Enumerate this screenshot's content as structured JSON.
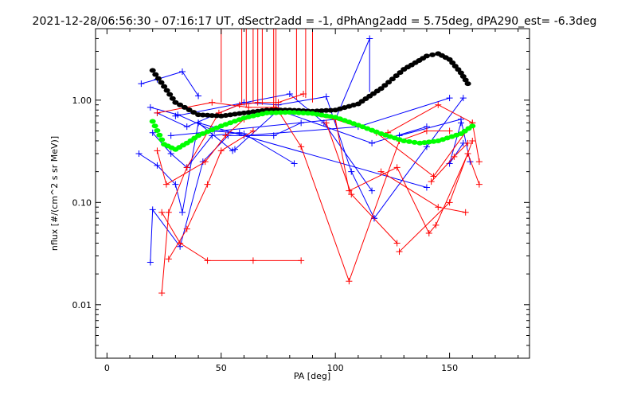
{
  "chart_data": {
    "type": "line",
    "title": "2021-12-28/06:56:30 - 07:16:17 UT, dSectr2add = -1, dPhAng2add = 5.75deg, dPA290_est=  -6.3deg",
    "xlabel": "PA [deg]",
    "ylabel": "nflux [#/(cm^2 s sr MeV)]",
    "xlim": [
      -5,
      185
    ],
    "ylim": [
      0.003,
      5
    ],
    "yscale": "log",
    "xticks": [
      0,
      50,
      100,
      150
    ],
    "xtick_labels": [
      "0",
      "50",
      "100",
      "150"
    ],
    "yticks": [
      0.01,
      0.1,
      1.0
    ],
    "ytick_labels": [
      "0.01",
      "0.10",
      "1.00"
    ],
    "colors": {
      "axis": "#000000",
      "blue": "#0000ff",
      "red": "#ff0000",
      "black": "#000000",
      "green": "#00ff00"
    },
    "series": [
      {
        "color": "blue",
        "style": "line-plus",
        "points": [
          [
            15,
            1.45
          ],
          [
            22,
            1.6
          ],
          [
            33,
            1.9
          ],
          [
            40,
            1.1
          ]
        ]
      },
      {
        "color": "blue",
        "style": "line-plus",
        "points": [
          [
            19,
            0.85
          ],
          [
            31,
            0.72
          ],
          [
            47,
            0.5
          ],
          [
            60,
            0.47
          ],
          [
            82,
            0.24
          ]
        ]
      },
      {
        "color": "blue",
        "style": "line-plus",
        "points": [
          [
            20,
            0.48
          ],
          [
            28,
            0.3
          ],
          [
            35,
            0.22
          ],
          [
            46,
            0.45
          ],
          [
            58,
            0.48
          ]
        ]
      },
      {
        "color": "blue",
        "style": "line-plus",
        "points": [
          [
            14,
            0.3
          ],
          [
            22,
            0.23
          ],
          [
            30,
            0.15
          ],
          [
            33,
            0.08
          ],
          [
            40,
            0.6
          ],
          [
            55,
            0.32
          ]
        ]
      },
      {
        "color": "blue",
        "style": "line-plus",
        "points": [
          [
            19,
            0.026
          ],
          [
            20,
            0.085
          ],
          [
            32,
            0.037
          ],
          [
            42,
            0.25
          ],
          [
            53,
            0.45
          ],
          [
            73,
            0.45
          ],
          [
            85,
            0.6
          ]
        ]
      },
      {
        "color": "blue",
        "style": "line-plus",
        "points": [
          [
            22,
            0.75
          ],
          [
            35,
            0.55
          ],
          [
            60,
            0.95
          ],
          [
            75,
            0.9
          ],
          [
            96,
            1.08
          ],
          [
            107,
            0.2
          ],
          [
            117,
            0.07
          ]
        ]
      },
      {
        "color": "blue",
        "style": "line-plus",
        "points": [
          [
            60,
            0.45
          ],
          [
            110,
            0.55
          ],
          [
            150,
            1.05
          ]
        ]
      },
      {
        "color": "blue",
        "style": "line-plus",
        "points": [
          [
            28,
            0.45
          ],
          [
            100,
            0.65
          ],
          [
            115,
            4.0
          ]
        ]
      },
      {
        "color": "blue",
        "style": "line-plus",
        "points": [
          [
            30,
            0.7
          ],
          [
            80,
            1.15
          ],
          [
            95,
            0.6
          ],
          [
            116,
            0.13
          ]
        ]
      },
      {
        "color": "blue",
        "style": "line-plus",
        "points": [
          [
            40,
            0.6
          ],
          [
            140,
            0.14
          ]
        ]
      },
      {
        "color": "blue",
        "style": "line-plus",
        "points": [
          [
            56,
            0.33
          ],
          [
            75,
            0.8
          ],
          [
            116,
            0.38
          ],
          [
            140,
            0.55
          ]
        ]
      },
      {
        "color": "blue",
        "style": "line-plus",
        "points": [
          [
            117,
            0.07
          ],
          [
            140,
            0.35
          ],
          [
            156,
            1.05
          ]
        ]
      },
      {
        "color": "blue",
        "style": "line-plus",
        "points": [
          [
            128,
            0.45
          ],
          [
            155,
            0.65
          ],
          [
            159,
            0.25
          ]
        ]
      },
      {
        "color": "blue",
        "style": "line-plus",
        "points": [
          [
            156,
            0.38
          ],
          [
            150,
            0.24
          ],
          [
            155,
            0.6
          ]
        ]
      },
      {
        "color": "blue",
        "style": "vline",
        "points": [
          [
            115,
            1.2
          ],
          [
            115,
            4.0
          ]
        ]
      },
      {
        "color": "red",
        "style": "line-plus",
        "points": [
          [
            24,
            0.013
          ],
          [
            27,
            0.08
          ],
          [
            35,
            0.22
          ],
          [
            49,
            0.75
          ],
          [
            58,
            0.9
          ],
          [
            66,
            0.95
          ],
          [
            75,
            0.95
          ],
          [
            86,
            1.15
          ]
        ]
      },
      {
        "color": "red",
        "style": "line-plus",
        "points": [
          [
            27,
            0.028
          ],
          [
            35,
            0.055
          ],
          [
            44,
            0.15
          ],
          [
            50,
            0.32
          ],
          [
            64,
            0.5
          ]
        ]
      },
      {
        "color": "red",
        "style": "line-plus",
        "points": [
          [
            24,
            0.08
          ],
          [
            32,
            0.04
          ],
          [
            44,
            0.027
          ],
          [
            64,
            0.027
          ],
          [
            85,
            0.027
          ]
        ]
      },
      {
        "color": "red",
        "style": "line-plus",
        "points": [
          [
            22,
            0.32
          ],
          [
            26,
            0.15
          ],
          [
            43,
            0.25
          ],
          [
            52,
            0.45
          ],
          [
            60,
            0.65
          ],
          [
            74,
            0.85
          ],
          [
            85,
            0.35
          ],
          [
            106,
            0.017
          ],
          [
            128,
            0.4
          ],
          [
            140,
            0.5
          ],
          [
            150,
            0.5
          ]
        ]
      },
      {
        "color": "red",
        "style": "line-plus",
        "points": [
          [
            22,
            0.75
          ],
          [
            46,
            0.95
          ],
          [
            62,
            0.85
          ],
          [
            73,
            0.85
          ],
          [
            100,
            0.65
          ],
          [
            106,
            0.13
          ],
          [
            127,
            0.22
          ],
          [
            141,
            0.05
          ],
          [
            144,
            0.06
          ],
          [
            158,
            0.3
          ],
          [
            163,
            0.15
          ]
        ]
      },
      {
        "color": "red",
        "style": "line-plus",
        "points": [
          [
            96,
            0.6
          ],
          [
            107,
            0.12
          ],
          [
            127,
            0.04
          ]
        ]
      },
      {
        "color": "red",
        "style": "line-plus",
        "points": [
          [
            100,
            0.65
          ],
          [
            118,
            0.48
          ],
          [
            143,
            0.18
          ],
          [
            160,
            0.6
          ]
        ]
      },
      {
        "color": "red",
        "style": "line-plus",
        "points": [
          [
            120,
            0.2
          ],
          [
            145,
            0.09
          ],
          [
            157,
            0.08
          ]
        ]
      },
      {
        "color": "red",
        "style": "line-plus",
        "points": [
          [
            123,
            0.48
          ],
          [
            145,
            0.9
          ],
          [
            160,
            0.6
          ],
          [
            163,
            0.25
          ]
        ]
      },
      {
        "color": "red",
        "style": "line-plus",
        "points": [
          [
            128,
            0.033
          ],
          [
            150,
            0.1
          ],
          [
            160,
            0.4
          ]
        ]
      },
      {
        "color": "red",
        "style": "line-plus",
        "points": [
          [
            142,
            0.16
          ],
          [
            152,
            0.28
          ],
          [
            158,
            0.38
          ]
        ]
      },
      {
        "color": "red",
        "style": "vline",
        "points": [
          [
            50,
            0.95
          ],
          [
            50,
            5.0
          ]
        ]
      },
      {
        "color": "red",
        "style": "vline",
        "points": [
          [
            59,
            0.9
          ],
          [
            59,
            5.0
          ]
        ]
      },
      {
        "color": "red",
        "style": "vline",
        "points": [
          [
            61,
            0.85
          ],
          [
            61,
            5.0
          ]
        ]
      },
      {
        "color": "red",
        "style": "vline",
        "points": [
          [
            64,
            0.95
          ],
          [
            64,
            5.0
          ]
        ]
      },
      {
        "color": "red",
        "style": "vline",
        "points": [
          [
            66,
            0.95
          ],
          [
            66,
            5.0
          ]
        ]
      },
      {
        "color": "red",
        "style": "vline",
        "points": [
          [
            68,
            0.9
          ],
          [
            68,
            5.0
          ]
        ]
      },
      {
        "color": "red",
        "style": "vline",
        "points": [
          [
            73,
            0.85
          ],
          [
            73,
            5.0
          ]
        ]
      },
      {
        "color": "red",
        "style": "vline",
        "points": [
          [
            74,
            0.8
          ],
          [
            74,
            5.0
          ]
        ]
      },
      {
        "color": "red",
        "style": "vline",
        "points": [
          [
            83,
            1.0
          ],
          [
            83,
            5.0
          ]
        ]
      },
      {
        "color": "red",
        "style": "vline",
        "points": [
          [
            87,
            1.05
          ],
          [
            87,
            5.0
          ]
        ]
      },
      {
        "color": "red",
        "style": "vline",
        "points": [
          [
            90,
            0.95
          ],
          [
            90,
            5.0
          ]
        ]
      },
      {
        "color": "black",
        "style": "dots",
        "points": [
          [
            20,
            1.95
          ],
          [
            30,
            0.95
          ],
          [
            40,
            0.72
          ],
          [
            50,
            0.7
          ],
          [
            60,
            0.75
          ],
          [
            70,
            0.8
          ],
          [
            80,
            0.8
          ],
          [
            90,
            0.78
          ],
          [
            100,
            0.8
          ],
          [
            110,
            0.92
          ],
          [
            120,
            1.3
          ],
          [
            130,
            2.0
          ],
          [
            140,
            2.7
          ],
          [
            145,
            2.85
          ],
          [
            150,
            2.5
          ],
          [
            155,
            1.85
          ],
          [
            158,
            1.45
          ]
        ]
      },
      {
        "color": "green",
        "style": "dots",
        "points": [
          [
            20,
            0.62
          ],
          [
            25,
            0.37
          ],
          [
            30,
            0.33
          ],
          [
            35,
            0.38
          ],
          [
            40,
            0.45
          ],
          [
            50,
            0.56
          ],
          [
            60,
            0.67
          ],
          [
            70,
            0.75
          ],
          [
            80,
            0.76
          ],
          [
            90,
            0.74
          ],
          [
            100,
            0.68
          ],
          [
            110,
            0.57
          ],
          [
            120,
            0.47
          ],
          [
            130,
            0.4
          ],
          [
            137,
            0.38
          ],
          [
            145,
            0.4
          ],
          [
            155,
            0.47
          ],
          [
            160,
            0.56
          ]
        ]
      }
    ]
  }
}
